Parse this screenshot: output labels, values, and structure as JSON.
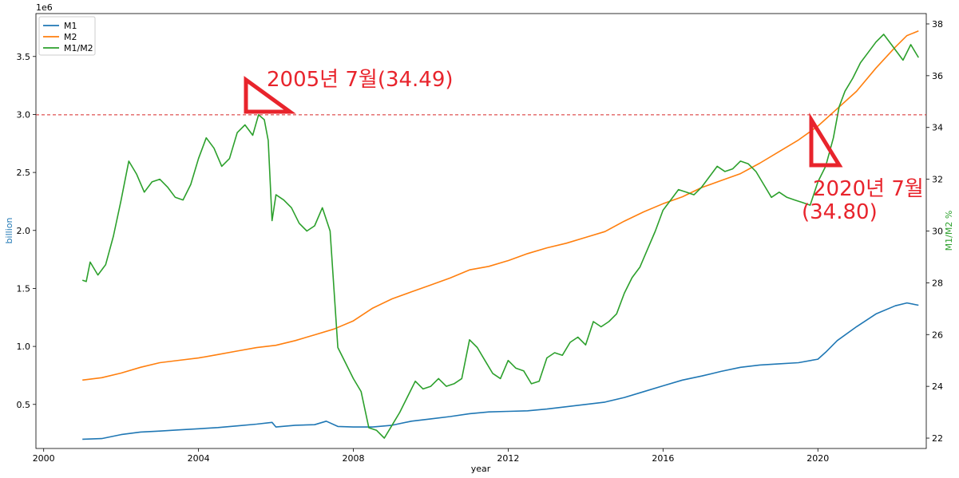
{
  "chart_data": {
    "type": "line",
    "xlabel": "year",
    "ylabel_left": "billion",
    "ylabel_right": "M1/M2 %",
    "left_scale_label": "1e6",
    "xlim": [
      1999.8,
      2022.8
    ],
    "ylim_left": [
      120000,
      3870000
    ],
    "ylim_right": [
      21.6,
      38.4
    ],
    "x_ticks": [
      2000,
      2004,
      2008,
      2012,
      2016,
      2020
    ],
    "y_left_ticks": [
      {
        "v": 500000,
        "label": "0.5"
      },
      {
        "v": 1000000,
        "label": "1.0"
      },
      {
        "v": 1500000,
        "label": "1.5"
      },
      {
        "v": 2000000,
        "label": "2.0"
      },
      {
        "v": 2500000,
        "label": "2.5"
      },
      {
        "v": 3000000,
        "label": "3.0"
      },
      {
        "v": 3500000,
        "label": "3.5"
      }
    ],
    "y_right_ticks": [
      22,
      24,
      26,
      28,
      30,
      32,
      34,
      36,
      38
    ],
    "grid": false,
    "legend_position": "top-left",
    "reference_line": {
      "axis": "right",
      "value": 34.49,
      "color": "#d62728",
      "style": "dashed"
    },
    "colors": {
      "M1": "#1f77b4",
      "M2": "#ff7f0e",
      "M1/M2": "#2ca02c"
    },
    "series": [
      {
        "name": "M1",
        "axis": "left",
        "points": [
          [
            2001.0,
            200000
          ],
          [
            2001.5,
            205000
          ],
          [
            2002.0,
            240000
          ],
          [
            2002.5,
            262000
          ],
          [
            2003.0,
            270000
          ],
          [
            2003.5,
            280000
          ],
          [
            2004.0,
            290000
          ],
          [
            2004.5,
            300000
          ],
          [
            2005.0,
            315000
          ],
          [
            2005.5,
            330000
          ],
          [
            2005.9,
            345000
          ],
          [
            2006.0,
            305000
          ],
          [
            2006.5,
            320000
          ],
          [
            2007.0,
            325000
          ],
          [
            2007.3,
            355000
          ],
          [
            2007.6,
            310000
          ],
          [
            2008.0,
            305000
          ],
          [
            2008.5,
            305000
          ],
          [
            2009.0,
            320000
          ],
          [
            2009.5,
            355000
          ],
          [
            2010.0,
            375000
          ],
          [
            2010.5,
            395000
          ],
          [
            2011.0,
            420000
          ],
          [
            2011.5,
            435000
          ],
          [
            2012.0,
            440000
          ],
          [
            2012.5,
            445000
          ],
          [
            2013.0,
            460000
          ],
          [
            2013.5,
            480000
          ],
          [
            2014.0,
            500000
          ],
          [
            2014.5,
            520000
          ],
          [
            2015.0,
            560000
          ],
          [
            2015.5,
            610000
          ],
          [
            2016.0,
            660000
          ],
          [
            2016.5,
            710000
          ],
          [
            2017.0,
            745000
          ],
          [
            2017.5,
            785000
          ],
          [
            2018.0,
            820000
          ],
          [
            2018.5,
            840000
          ],
          [
            2019.0,
            850000
          ],
          [
            2019.5,
            860000
          ],
          [
            2020.0,
            890000
          ],
          [
            2020.2,
            950000
          ],
          [
            2020.5,
            1050000
          ],
          [
            2021.0,
            1170000
          ],
          [
            2021.5,
            1280000
          ],
          [
            2022.0,
            1350000
          ],
          [
            2022.3,
            1375000
          ],
          [
            2022.6,
            1355000
          ]
        ]
      },
      {
        "name": "M2",
        "axis": "left",
        "points": [
          [
            2001.0,
            710000
          ],
          [
            2001.5,
            730000
          ],
          [
            2002.0,
            770000
          ],
          [
            2002.5,
            820000
          ],
          [
            2003.0,
            860000
          ],
          [
            2003.5,
            880000
          ],
          [
            2004.0,
            900000
          ],
          [
            2004.5,
            930000
          ],
          [
            2005.0,
            960000
          ],
          [
            2005.5,
            990000
          ],
          [
            2006.0,
            1010000
          ],
          [
            2006.5,
            1050000
          ],
          [
            2007.0,
            1100000
          ],
          [
            2007.5,
            1150000
          ],
          [
            2008.0,
            1220000
          ],
          [
            2008.5,
            1330000
          ],
          [
            2009.0,
            1410000
          ],
          [
            2009.5,
            1470000
          ],
          [
            2010.0,
            1530000
          ],
          [
            2010.5,
            1590000
          ],
          [
            2011.0,
            1660000
          ],
          [
            2011.5,
            1690000
          ],
          [
            2012.0,
            1740000
          ],
          [
            2012.5,
            1800000
          ],
          [
            2013.0,
            1850000
          ],
          [
            2013.5,
            1890000
          ],
          [
            2014.0,
            1940000
          ],
          [
            2014.5,
            1990000
          ],
          [
            2015.0,
            2080000
          ],
          [
            2015.5,
            2160000
          ],
          [
            2016.0,
            2230000
          ],
          [
            2016.5,
            2290000
          ],
          [
            2017.0,
            2370000
          ],
          [
            2017.5,
            2430000
          ],
          [
            2018.0,
            2490000
          ],
          [
            2018.5,
            2580000
          ],
          [
            2019.0,
            2680000
          ],
          [
            2019.5,
            2780000
          ],
          [
            2020.0,
            2900000
          ],
          [
            2020.5,
            3050000
          ],
          [
            2021.0,
            3200000
          ],
          [
            2021.5,
            3400000
          ],
          [
            2022.0,
            3580000
          ],
          [
            2022.3,
            3680000
          ],
          [
            2022.6,
            3720000
          ]
        ]
      },
      {
        "name": "M1/M2",
        "axis": "right",
        "points": [
          [
            2001.0,
            28.1
          ],
          [
            2001.1,
            28.05
          ],
          [
            2001.2,
            28.8
          ],
          [
            2001.4,
            28.3
          ],
          [
            2001.6,
            28.7
          ],
          [
            2001.8,
            29.8
          ],
          [
            2002.0,
            31.2
          ],
          [
            2002.2,
            32.7
          ],
          [
            2002.4,
            32.2
          ],
          [
            2002.6,
            31.5
          ],
          [
            2002.8,
            31.9
          ],
          [
            2003.0,
            32.0
          ],
          [
            2003.2,
            31.7
          ],
          [
            2003.4,
            31.3
          ],
          [
            2003.6,
            31.2
          ],
          [
            2003.8,
            31.8
          ],
          [
            2004.0,
            32.8
          ],
          [
            2004.2,
            33.6
          ],
          [
            2004.4,
            33.2
          ],
          [
            2004.6,
            32.5
          ],
          [
            2004.8,
            32.8
          ],
          [
            2005.0,
            33.8
          ],
          [
            2005.2,
            34.1
          ],
          [
            2005.4,
            33.7
          ],
          [
            2005.55,
            34.49
          ],
          [
            2005.7,
            34.3
          ],
          [
            2005.8,
            33.5
          ],
          [
            2005.9,
            30.4
          ],
          [
            2006.0,
            31.4
          ],
          [
            2006.2,
            31.2
          ],
          [
            2006.4,
            30.9
          ],
          [
            2006.6,
            30.3
          ],
          [
            2006.8,
            30.0
          ],
          [
            2007.0,
            30.2
          ],
          [
            2007.2,
            30.9
          ],
          [
            2007.4,
            30.0
          ],
          [
            2007.6,
            25.5
          ],
          [
            2007.8,
            24.9
          ],
          [
            2008.0,
            24.3
          ],
          [
            2008.2,
            23.8
          ],
          [
            2008.4,
            22.4
          ],
          [
            2008.6,
            22.3
          ],
          [
            2008.8,
            22.0
          ],
          [
            2009.0,
            22.5
          ],
          [
            2009.2,
            23.0
          ],
          [
            2009.4,
            23.6
          ],
          [
            2009.6,
            24.2
          ],
          [
            2009.8,
            23.9
          ],
          [
            2010.0,
            24.0
          ],
          [
            2010.2,
            24.3
          ],
          [
            2010.4,
            24.0
          ],
          [
            2010.6,
            24.1
          ],
          [
            2010.8,
            24.3
          ],
          [
            2011.0,
            25.8
          ],
          [
            2011.2,
            25.5
          ],
          [
            2011.4,
            25.0
          ],
          [
            2011.6,
            24.5
          ],
          [
            2011.8,
            24.3
          ],
          [
            2012.0,
            25.0
          ],
          [
            2012.2,
            24.7
          ],
          [
            2012.4,
            24.6
          ],
          [
            2012.6,
            24.1
          ],
          [
            2012.8,
            24.2
          ],
          [
            2013.0,
            25.1
          ],
          [
            2013.2,
            25.3
          ],
          [
            2013.4,
            25.2
          ],
          [
            2013.6,
            25.7
          ],
          [
            2013.8,
            25.9
          ],
          [
            2014.0,
            25.6
          ],
          [
            2014.2,
            26.5
          ],
          [
            2014.4,
            26.3
          ],
          [
            2014.6,
            26.5
          ],
          [
            2014.8,
            26.8
          ],
          [
            2015.0,
            27.6
          ],
          [
            2015.2,
            28.2
          ],
          [
            2015.4,
            28.6
          ],
          [
            2015.6,
            29.3
          ],
          [
            2015.8,
            30.0
          ],
          [
            2016.0,
            30.8
          ],
          [
            2016.2,
            31.2
          ],
          [
            2016.4,
            31.6
          ],
          [
            2016.6,
            31.5
          ],
          [
            2016.8,
            31.4
          ],
          [
            2017.0,
            31.7
          ],
          [
            2017.2,
            32.1
          ],
          [
            2017.4,
            32.5
          ],
          [
            2017.6,
            32.3
          ],
          [
            2017.8,
            32.4
          ],
          [
            2018.0,
            32.7
          ],
          [
            2018.2,
            32.6
          ],
          [
            2018.4,
            32.3
          ],
          [
            2018.6,
            31.8
          ],
          [
            2018.8,
            31.3
          ],
          [
            2019.0,
            31.5
          ],
          [
            2019.2,
            31.3
          ],
          [
            2019.4,
            31.2
          ],
          [
            2019.6,
            31.1
          ],
          [
            2019.8,
            31.0
          ],
          [
            2020.0,
            31.9
          ],
          [
            2020.2,
            32.5
          ],
          [
            2020.4,
            33.6
          ],
          [
            2020.55,
            34.8
          ],
          [
            2020.7,
            35.4
          ],
          [
            2020.9,
            35.9
          ],
          [
            2021.1,
            36.5
          ],
          [
            2021.3,
            36.9
          ],
          [
            2021.5,
            37.3
          ],
          [
            2021.7,
            37.6
          ],
          [
            2021.9,
            37.2
          ],
          [
            2022.0,
            37.0
          ],
          [
            2022.2,
            36.6
          ],
          [
            2022.4,
            37.2
          ],
          [
            2022.6,
            36.7
          ]
        ]
      }
    ],
    "annotations": [
      {
        "text": "2005년 7월(34.49)",
        "x": 2005.55,
        "y": 34.49
      },
      {
        "text": "2020년 7월",
        "x": 2020.55,
        "y": 34.8
      },
      {
        "text": "(34.80)",
        "x": 2020.55,
        "y": 34.8
      }
    ]
  }
}
